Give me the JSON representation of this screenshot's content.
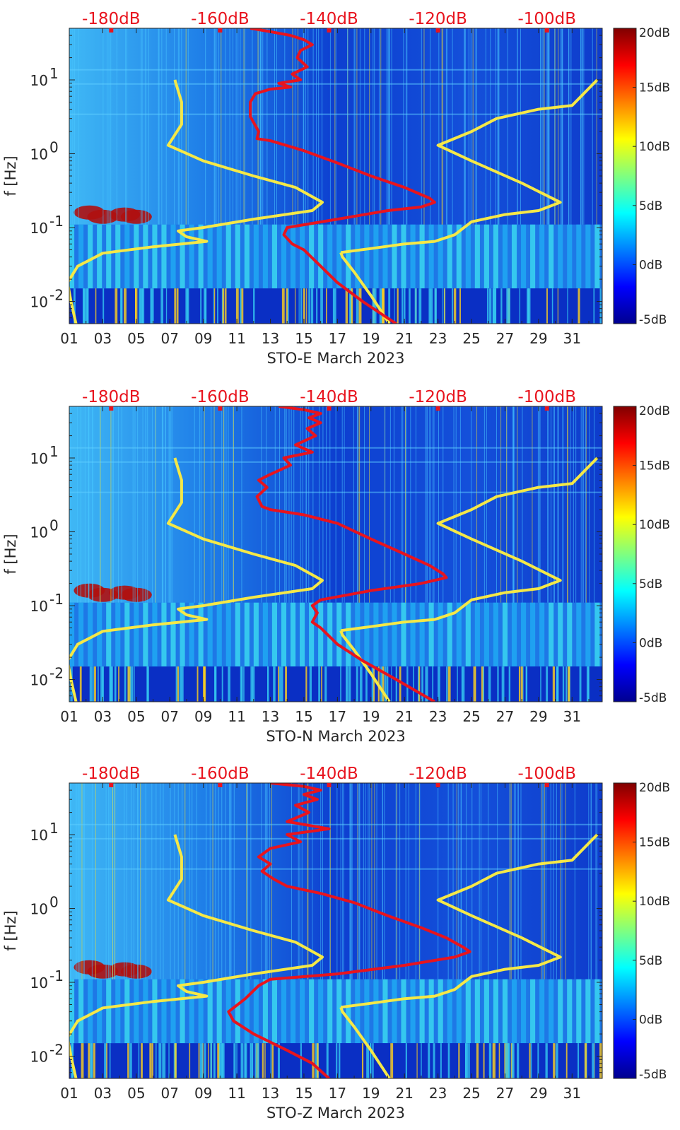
{
  "chart_data": [
    {
      "type": "heatmap",
      "station": "STO-E",
      "xlabel": "STO-E March 2023",
      "ylabel": "f [Hz]",
      "x_tick_labels": [
        "01",
        "03",
        "05",
        "07",
        "09",
        "11",
        "13",
        "15",
        "17",
        "19",
        "21",
        "23",
        "25",
        "27",
        "29",
        "31"
      ],
      "x_tick_days": [
        1,
        3,
        5,
        7,
        9,
        11,
        13,
        15,
        17,
        19,
        21,
        23,
        25,
        27,
        29,
        31
      ],
      "xlim_days": [
        1,
        32.8
      ],
      "ylim_hz": [
        0.005,
        50
      ],
      "y_ticks": [
        {
          "exp": "-2",
          "value": 0.01
        },
        {
          "exp": "-1",
          "value": 0.1
        },
        {
          "exp": "0",
          "value": 1
        },
        {
          "exp": "1",
          "value": 10
        }
      ],
      "top_axis_labels": [
        "-180dB",
        "-160dB",
        "-140dB",
        "-120dB",
        "-100dB"
      ],
      "top_axis_days": [
        3.5,
        10.0,
        16.5,
        23.0,
        29.5
      ],
      "colorbar": {
        "labels": [
          "20dB",
          "15dB",
          "10dB",
          "5dB",
          "0dB",
          "-5dB"
        ],
        "range_db": [
          -5,
          20
        ],
        "colormap": "jet"
      },
      "yellow_model": [
        [
          7.3,
          10
        ],
        [
          7.7,
          5
        ],
        [
          7.7,
          2.5
        ],
        [
          6.9,
          1.3
        ],
        [
          9,
          0.8
        ],
        [
          12,
          0.5
        ],
        [
          14.5,
          0.35
        ],
        [
          16.1,
          0.22
        ],
        [
          15.5,
          0.17
        ],
        [
          12,
          0.13
        ],
        [
          9,
          0.1
        ],
        [
          7.5,
          0.09
        ],
        [
          8,
          0.075
        ],
        [
          9.2,
          0.065
        ],
        [
          6,
          0.055
        ],
        [
          3,
          0.045
        ],
        [
          1.5,
          0.03
        ],
        [
          0.9,
          0.018
        ],
        [
          1.1,
          0.01
        ],
        [
          1.4,
          0.005
        ]
      ],
      "yellow_high_model": [
        [
          17.2,
          0.046
        ],
        [
          17.3,
          0.04
        ],
        [
          18,
          0.025
        ],
        [
          19,
          0.012
        ],
        [
          20.1,
          0.005
        ],
        null,
        [
          17.2,
          0.046
        ],
        [
          19,
          0.052
        ],
        [
          21,
          0.06
        ],
        [
          22.8,
          0.065
        ],
        [
          24,
          0.08
        ],
        [
          25,
          0.12
        ],
        [
          27,
          0.15
        ],
        [
          29,
          0.17
        ],
        [
          30.3,
          0.22
        ],
        [
          28,
          0.4
        ],
        [
          25,
          0.8
        ],
        [
          23,
          1.3
        ],
        [
          25,
          2.0
        ],
        [
          26.5,
          3.0
        ],
        [
          29,
          4
        ],
        [
          31,
          4.5
        ],
        [
          32.5,
          10
        ]
      ],
      "red_curve": [
        [
          11.8,
          50
        ],
        [
          13,
          45
        ],
        [
          14.2,
          40
        ],
        [
          15,
          35
        ],
        [
          15.5,
          30
        ],
        [
          14.8,
          25
        ],
        [
          14.6,
          20
        ],
        [
          15.2,
          15
        ],
        [
          14.3,
          12
        ],
        [
          14.8,
          10
        ],
        [
          13.5,
          9
        ],
        [
          14.2,
          8
        ],
        [
          13,
          7.5
        ],
        [
          12.1,
          6.5
        ],
        [
          11.8,
          5
        ],
        [
          11.8,
          3.2
        ],
        [
          12.3,
          2.0
        ],
        [
          12.2,
          1.6
        ],
        [
          13,
          1.5
        ],
        [
          15,
          1.1
        ],
        [
          17,
          0.75
        ],
        [
          19,
          0.5
        ],
        [
          21,
          0.35
        ],
        [
          22.5,
          0.25
        ],
        [
          22.8,
          0.22
        ],
        [
          22,
          0.19
        ],
        [
          20,
          0.17
        ],
        [
          17,
          0.13
        ],
        [
          14,
          0.1
        ],
        [
          13.8,
          0.08
        ],
        [
          14.3,
          0.06
        ],
        [
          15,
          0.05
        ],
        [
          16,
          0.03
        ],
        [
          17,
          0.018
        ],
        [
          18.5,
          0.01
        ],
        [
          20.5,
          0.005
        ]
      ],
      "yellow_low_visible": true
    },
    {
      "type": "heatmap",
      "station": "STO-N",
      "xlabel": "STO-N March 2023",
      "ylabel": "f [Hz]",
      "x_tick_labels": [
        "01",
        "03",
        "05",
        "07",
        "09",
        "11",
        "13",
        "15",
        "17",
        "19",
        "21",
        "23",
        "25",
        "27",
        "29",
        "31"
      ],
      "x_tick_days": [
        1,
        3,
        5,
        7,
        9,
        11,
        13,
        15,
        17,
        19,
        21,
        23,
        25,
        27,
        29,
        31
      ],
      "xlim_days": [
        1,
        32.8
      ],
      "ylim_hz": [
        0.005,
        50
      ],
      "y_ticks": [
        {
          "exp": "-2",
          "value": 0.01
        },
        {
          "exp": "-1",
          "value": 0.1
        },
        {
          "exp": "0",
          "value": 1
        },
        {
          "exp": "1",
          "value": 10
        }
      ],
      "top_axis_labels": [
        "-180dB",
        "-160dB",
        "-140dB",
        "-120dB",
        "-100dB"
      ],
      "top_axis_days": [
        3.5,
        10.0,
        16.5,
        23.0,
        29.5
      ],
      "colorbar": {
        "labels": [
          "20dB",
          "15dB",
          "10dB",
          "5dB",
          "0dB",
          "-5dB"
        ],
        "range_db": [
          -5,
          20
        ],
        "colormap": "jet"
      },
      "yellow_model": [
        [
          7.3,
          10
        ],
        [
          7.7,
          5
        ],
        [
          7.7,
          2.5
        ],
        [
          6.9,
          1.3
        ],
        [
          9,
          0.8
        ],
        [
          12,
          0.5
        ],
        [
          14.5,
          0.35
        ],
        [
          16.1,
          0.22
        ],
        [
          15.5,
          0.17
        ],
        [
          12,
          0.13
        ],
        [
          9,
          0.1
        ],
        [
          7.5,
          0.09
        ],
        [
          8,
          0.075
        ],
        [
          9.2,
          0.065
        ],
        [
          6,
          0.055
        ],
        [
          3,
          0.045
        ],
        [
          1.5,
          0.03
        ],
        [
          0.9,
          0.018
        ],
        [
          1.1,
          0.01
        ],
        [
          1.4,
          0.005
        ]
      ],
      "yellow_high_model": [
        [
          17.2,
          0.046
        ],
        [
          17.3,
          0.04
        ],
        [
          18,
          0.025
        ],
        [
          19,
          0.012
        ],
        [
          20.1,
          0.005
        ],
        null,
        [
          17.2,
          0.046
        ],
        [
          19,
          0.052
        ],
        [
          21,
          0.06
        ],
        [
          22.8,
          0.065
        ],
        [
          24,
          0.08
        ],
        [
          25,
          0.12
        ],
        [
          27,
          0.15
        ],
        [
          29,
          0.17
        ],
        [
          30.3,
          0.22
        ],
        [
          28,
          0.4
        ],
        [
          25,
          0.8
        ],
        [
          23,
          1.3
        ],
        [
          25,
          2.0
        ],
        [
          26.5,
          3.0
        ],
        [
          29,
          4
        ],
        [
          31,
          4.5
        ],
        [
          32.5,
          10
        ]
      ],
      "red_curve": [
        [
          13.5,
          50
        ],
        [
          15,
          45
        ],
        [
          16,
          40
        ],
        [
          15.3,
          35
        ],
        [
          16,
          30
        ],
        [
          15.2,
          25
        ],
        [
          15.7,
          20
        ],
        [
          14.5,
          15
        ],
        [
          15.5,
          12
        ],
        [
          13.8,
          10
        ],
        [
          14.2,
          8
        ],
        [
          13,
          6
        ],
        [
          12.3,
          5
        ],
        [
          12.8,
          4
        ],
        [
          12.2,
          3
        ],
        [
          12.5,
          2.2
        ],
        [
          13,
          2.0
        ],
        [
          15,
          1.7
        ],
        [
          17,
          1.3
        ],
        [
          19,
          0.8
        ],
        [
          21,
          0.5
        ],
        [
          22.5,
          0.35
        ],
        [
          23.3,
          0.27
        ],
        [
          23.5,
          0.24
        ],
        [
          22,
          0.2
        ],
        [
          19,
          0.16
        ],
        [
          16,
          0.12
        ],
        [
          15.5,
          0.1
        ],
        [
          15.8,
          0.08
        ],
        [
          15.5,
          0.06
        ],
        [
          16,
          0.05
        ],
        [
          17,
          0.03
        ],
        [
          18.5,
          0.018
        ],
        [
          20.5,
          0.01
        ],
        [
          22.8,
          0.005
        ]
      ]
    },
    {
      "type": "heatmap",
      "station": "STO-Z",
      "xlabel": "STO-Z March 2023",
      "ylabel": "f [Hz]",
      "x_tick_labels": [
        "01",
        "03",
        "05",
        "07",
        "09",
        "11",
        "13",
        "15",
        "17",
        "19",
        "21",
        "23",
        "25",
        "27",
        "29",
        "31"
      ],
      "x_tick_days": [
        1,
        3,
        5,
        7,
        9,
        11,
        13,
        15,
        17,
        19,
        21,
        23,
        25,
        27,
        29,
        31
      ],
      "xlim_days": [
        1,
        32.8
      ],
      "ylim_hz": [
        0.005,
        50
      ],
      "y_ticks": [
        {
          "exp": "-2",
          "value": 0.01
        },
        {
          "exp": "-1",
          "value": 0.1
        },
        {
          "exp": "0",
          "value": 1
        },
        {
          "exp": "1",
          "value": 10
        }
      ],
      "top_axis_labels": [
        "-180dB",
        "-160dB",
        "-140dB",
        "-120dB",
        "-100dB"
      ],
      "top_axis_days": [
        3.5,
        10.0,
        16.5,
        23.0,
        29.5
      ],
      "colorbar": {
        "labels": [
          "20dB",
          "15dB",
          "10dB",
          "5dB",
          "0dB",
          "-5dB"
        ],
        "range_db": [
          -5,
          20
        ],
        "colormap": "jet"
      },
      "yellow_model": [
        [
          7.3,
          10
        ],
        [
          7.7,
          5
        ],
        [
          7.7,
          2.5
        ],
        [
          6.9,
          1.3
        ],
        [
          9,
          0.8
        ],
        [
          12,
          0.5
        ],
        [
          14.5,
          0.35
        ],
        [
          16.1,
          0.22
        ],
        [
          15.5,
          0.17
        ],
        [
          12,
          0.13
        ],
        [
          9,
          0.1
        ],
        [
          7.5,
          0.09
        ],
        [
          8,
          0.075
        ],
        [
          9.2,
          0.065
        ],
        [
          6,
          0.055
        ],
        [
          3,
          0.045
        ],
        [
          1.5,
          0.03
        ],
        [
          0.9,
          0.018
        ],
        [
          1.1,
          0.01
        ],
        [
          1.4,
          0.005
        ]
      ],
      "yellow_high_model": [
        [
          17.2,
          0.046
        ],
        [
          17.3,
          0.04
        ],
        [
          18,
          0.025
        ],
        [
          19,
          0.012
        ],
        [
          20.1,
          0.005
        ],
        null,
        [
          17.2,
          0.046
        ],
        [
          19,
          0.052
        ],
        [
          21,
          0.06
        ],
        [
          22.8,
          0.065
        ],
        [
          24,
          0.08
        ],
        [
          25,
          0.12
        ],
        [
          27,
          0.15
        ],
        [
          29,
          0.17
        ],
        [
          30.3,
          0.22
        ],
        [
          28,
          0.4
        ],
        [
          25,
          0.8
        ],
        [
          23,
          1.3
        ],
        [
          25,
          2.0
        ],
        [
          26.5,
          3.0
        ],
        [
          29,
          4
        ],
        [
          31,
          4.5
        ],
        [
          32.5,
          10
        ]
      ],
      "red_curve": [
        [
          13,
          50
        ],
        [
          15,
          45
        ],
        [
          16,
          40
        ],
        [
          15,
          35
        ],
        [
          15.8,
          30
        ],
        [
          14.5,
          25
        ],
        [
          15.3,
          20
        ],
        [
          14,
          15
        ],
        [
          16.5,
          12
        ],
        [
          14,
          10
        ],
        [
          14.8,
          8
        ],
        [
          13,
          6.5
        ],
        [
          12.3,
          5
        ],
        [
          13,
          4
        ],
        [
          12.5,
          3.2
        ],
        [
          13.2,
          2.5
        ],
        [
          14,
          2.0
        ],
        [
          16,
          1.6
        ],
        [
          18,
          1.2
        ],
        [
          20,
          0.8
        ],
        [
          22,
          0.55
        ],
        [
          23.5,
          0.4
        ],
        [
          24.5,
          0.3
        ],
        [
          24.9,
          0.26
        ],
        [
          24,
          0.22
        ],
        [
          21,
          0.17
        ],
        [
          17,
          0.13
        ],
        [
          13,
          0.11
        ],
        [
          12.3,
          0.09
        ],
        [
          11.5,
          0.06
        ],
        [
          10.5,
          0.04
        ],
        [
          10.8,
          0.03
        ],
        [
          12,
          0.02
        ],
        [
          14,
          0.012
        ],
        [
          15.5,
          0.008
        ],
        [
          16.5,
          0.005
        ]
      ]
    }
  ]
}
